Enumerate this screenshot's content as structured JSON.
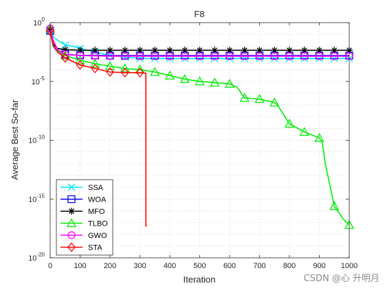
{
  "chart_data": {
    "type": "line",
    "title": "F8",
    "xlabel": "Iteration",
    "ylabel": "Average Best So-far",
    "xlim": [
      0,
      1000
    ],
    "ylim_exponent": [
      -20,
      0
    ],
    "yscale": "log",
    "xticks": [
      "0",
      "100",
      "200",
      "300",
      "400",
      "500",
      "600",
      "700",
      "800",
      "900",
      "1000"
    ],
    "yticks": [
      {
        "base": "10",
        "exp": "-20",
        "value": -20
      },
      {
        "base": "10",
        "exp": "-15",
        "value": -15
      },
      {
        "base": "10",
        "exp": "-10",
        "value": -10
      },
      {
        "base": "10",
        "exp": "-5",
        "value": -5
      },
      {
        "base": "10",
        "exp": "0",
        "value": 0
      }
    ],
    "grid": true,
    "legend_position": "bottom-left",
    "series": [
      {
        "name": "SSA",
        "color": "#00e5ff",
        "marker": "x",
        "x": [
          0,
          10,
          25,
          50,
          75,
          100,
          150,
          200,
          300,
          1000
        ],
        "log10y": [
          -0.7,
          -1.2,
          -1.5,
          -1.9,
          -2.0,
          -2.2,
          -2.5,
          -2.8,
          -3.05,
          -3.05
        ]
      },
      {
        "name": "WOA",
        "color": "#0000ff",
        "marker": "square",
        "x": [
          0,
          10,
          25,
          50,
          100,
          200,
          1000
        ],
        "log10y": [
          -0.7,
          -2.0,
          -2.5,
          -2.7,
          -2.78,
          -2.8,
          -2.8
        ]
      },
      {
        "name": "MFO",
        "color": "#000000",
        "marker": "star",
        "x": [
          0,
          10,
          25,
          50,
          100,
          200,
          1000
        ],
        "log10y": [
          -0.6,
          -1.8,
          -2.2,
          -2.3,
          -2.35,
          -2.35,
          -2.35
        ]
      },
      {
        "name": "TLBO",
        "color": "#00ee00",
        "marker": "triangle",
        "x": [
          0,
          10,
          30,
          50,
          100,
          150,
          200,
          250,
          300,
          350,
          400,
          450,
          500,
          550,
          600,
          625,
          650,
          700,
          750,
          760,
          800,
          850,
          900,
          910,
          920,
          950,
          980,
          1000
        ],
        "log10y": [
          -0.5,
          -2.0,
          -2.5,
          -2.8,
          -3.2,
          -3.5,
          -3.7,
          -3.9,
          -4.0,
          -4.2,
          -4.5,
          -4.8,
          -5.0,
          -5.1,
          -5.2,
          -5.5,
          -6.4,
          -6.5,
          -6.8,
          -7.0,
          -8.6,
          -9.3,
          -9.8,
          -10.2,
          -12.0,
          -15.6,
          -16.7,
          -17.2
        ]
      },
      {
        "name": "GWO",
        "color": "#ff00ff",
        "marker": "circle",
        "x": [
          0,
          10,
          25,
          50,
          100,
          200,
          1000
        ],
        "log10y": [
          -0.5,
          -1.5,
          -2.3,
          -2.7,
          -2.8,
          -2.85,
          -2.85
        ]
      },
      {
        "name": "STA",
        "color": "#ff0000",
        "marker": "diamond",
        "x": [
          0,
          10,
          25,
          50,
          75,
          100,
          150,
          200,
          250,
          300,
          320,
          320,
          323
        ],
        "log10y": [
          -0.7,
          -1.9,
          -2.5,
          -3.0,
          -3.3,
          -3.6,
          -3.9,
          -4.2,
          -4.25,
          -4.25,
          -4.3,
          -17.3,
          -17.3
        ]
      }
    ]
  },
  "watermark": "CSDN @心 升明月"
}
